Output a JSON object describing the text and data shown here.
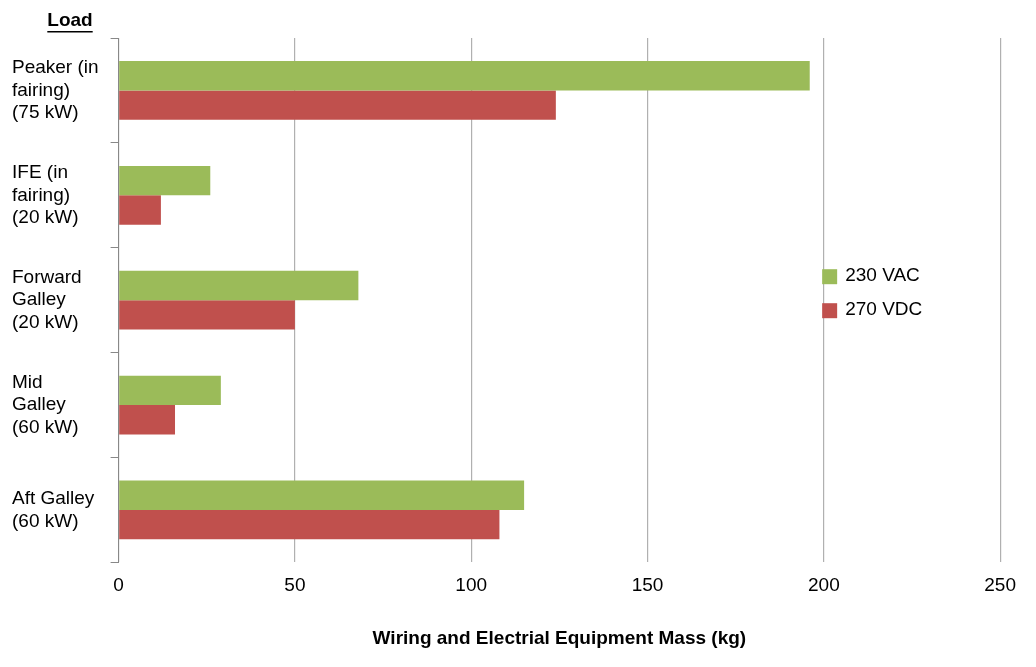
{
  "chart_data": {
    "type": "bar",
    "orientation": "horizontal",
    "ylabel": "Load",
    "xlabel": "Wiring and Electrial Equipment Mass (kg)",
    "categories": [
      "Peaker (in\nfairing)\n(75 kW)",
      "IFE (in\nfairing)\n(20 kW)",
      "Forward\nGalley\n(20 kW)",
      "Mid\nGalley\n(60 kW)",
      "Aft Galley\n(60 kW)"
    ],
    "series": [
      {
        "name": "230 VAC",
        "color": "#9bbb59",
        "values": [
          196,
          26,
          68,
          29,
          115
        ]
      },
      {
        "name": "270 VDC",
        "color": "#c0504d",
        "values": [
          124,
          12,
          50,
          16,
          108
        ]
      }
    ],
    "xlim": [
      0,
      250
    ],
    "xticks": [
      0,
      50,
      100,
      150,
      200,
      250
    ],
    "grid": "x",
    "legend": "right"
  }
}
